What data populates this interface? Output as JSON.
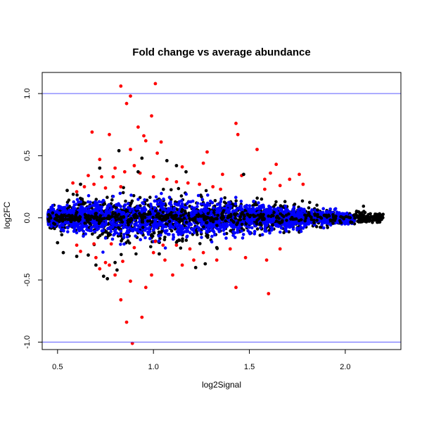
{
  "chart_data": {
    "type": "scatter",
    "title": "Fold change vs average abundance",
    "xlabel": "log2Signal",
    "ylabel": "log2FC",
    "xlim": [
      0.42,
      2.29
    ],
    "ylim": [
      -1.06,
      1.17
    ],
    "x_ticks": [
      0.5,
      1.0,
      1.5,
      2.0
    ],
    "x_tick_labels": [
      "0.5",
      "1.0",
      "1.5",
      "2.0"
    ],
    "y_ticks": [
      -1.0,
      -0.5,
      0.0,
      0.5,
      1.0
    ],
    "y_tick_labels": [
      "-1.0",
      "-0.5",
      "0.0",
      "0.5",
      "1.0"
    ],
    "reference_lines": [
      {
        "axis": "y",
        "value": 1.0,
        "color": "#5a5aff"
      },
      {
        "axis": "y",
        "value": -1.0,
        "color": "#5a5aff"
      }
    ],
    "colors": {
      "black": "#000000",
      "blue": "#0000ff",
      "red": "#ff0000"
    },
    "band_envelope": [
      [
        0.45,
        0.07
      ],
      [
        0.6,
        0.16
      ],
      [
        0.8,
        0.2
      ],
      [
        1.0,
        0.2
      ],
      [
        1.2,
        0.19
      ],
      [
        1.5,
        0.14
      ],
      [
        1.8,
        0.1
      ],
      [
        2.0,
        0.06
      ],
      [
        2.2,
        0.03
      ]
    ],
    "series": [
      {
        "color": "red",
        "points": [
          [
            0.83,
            1.06
          ],
          [
            0.88,
            0.98
          ],
          [
            1.01,
            1.08
          ],
          [
            0.86,
            0.92
          ],
          [
            0.99,
            0.82
          ],
          [
            0.92,
            0.73
          ],
          [
            0.68,
            0.69
          ],
          [
            0.77,
            0.67
          ],
          [
            0.95,
            0.66
          ],
          [
            0.96,
            0.62
          ],
          [
            1.04,
            0.61
          ],
          [
            0.88,
            0.55
          ],
          [
            1.02,
            0.52
          ],
          [
            1.43,
            0.76
          ],
          [
            1.44,
            0.67
          ],
          [
            1.54,
            0.55
          ],
          [
            1.28,
            0.53
          ],
          [
            1.26,
            0.44
          ],
          [
            1.36,
            0.35
          ],
          [
            1.64,
            0.43
          ],
          [
            1.61,
            0.36
          ],
          [
            1.76,
            0.35
          ],
          [
            1.71,
            0.31
          ],
          [
            1.58,
            0.31
          ],
          [
            1.46,
            0.34
          ],
          [
            1.35,
            0.23
          ],
          [
            1.31,
            0.25
          ],
          [
            1.24,
            0.27
          ],
          [
            1.18,
            0.28
          ],
          [
            1.12,
            0.29
          ],
          [
            1.07,
            0.31
          ],
          [
            1.0,
            0.33
          ],
          [
            0.93,
            0.36
          ],
          [
            0.85,
            0.37
          ],
          [
            0.79,
            0.33
          ],
          [
            0.73,
            0.33
          ],
          [
            0.66,
            0.34
          ],
          [
            0.64,
            0.25
          ],
          [
            0.6,
            0.21
          ],
          [
            0.72,
            0.47
          ],
          [
            0.8,
            0.4
          ],
          [
            0.9,
            0.42
          ],
          [
            0.69,
            0.27
          ],
          [
            0.58,
            0.28
          ],
          [
            1.15,
            0.41
          ],
          [
            0.83,
            0.25
          ],
          [
            0.75,
            0.24
          ],
          [
            1.58,
            0.23
          ],
          [
            1.66,
            0.26
          ],
          [
            1.78,
            0.27
          ],
          [
            0.6,
            -0.22
          ],
          [
            0.62,
            -0.27
          ],
          [
            0.7,
            -0.32
          ],
          [
            0.75,
            -0.36
          ],
          [
            0.8,
            -0.46
          ],
          [
            0.72,
            -0.41
          ],
          [
            0.83,
            -0.66
          ],
          [
            0.86,
            -0.84
          ],
          [
            0.89,
            -1.01
          ],
          [
            0.94,
            -0.8
          ],
          [
            0.96,
            -0.56
          ],
          [
            0.99,
            -0.46
          ],
          [
            1.06,
            -0.34
          ],
          [
            1.1,
            -0.46
          ],
          [
            1.15,
            -0.38
          ],
          [
            1.21,
            -0.34
          ],
          [
            1.33,
            -0.34
          ],
          [
            1.43,
            -0.56
          ],
          [
            1.48,
            -0.32
          ],
          [
            1.6,
            -0.61
          ],
          [
            1.59,
            -0.34
          ],
          [
            1.66,
            -0.25
          ],
          [
            0.78,
            -0.21
          ],
          [
            0.9,
            -0.24
          ],
          [
            1.0,
            -0.28
          ],
          [
            1.26,
            -0.28
          ],
          [
            1.4,
            -0.25
          ],
          [
            0.88,
            -0.51
          ],
          [
            0.77,
            -0.38
          ],
          [
            1.12,
            -0.22
          ],
          [
            0.84,
            -0.35
          ],
          [
            1.01,
            -0.19
          ],
          [
            1.05,
            -0.22
          ],
          [
            1.19,
            -0.25
          ],
          [
            0.69,
            -0.21
          ]
        ]
      },
      {
        "color": "black",
        "points": [
          [
            0.82,
            0.54
          ],
          [
            0.94,
            0.48
          ],
          [
            1.07,
            0.46
          ],
          [
            1.12,
            0.42
          ],
          [
            0.72,
            0.4
          ],
          [
            0.92,
            0.37
          ],
          [
            1.17,
            0.37
          ],
          [
            1.47,
            0.35
          ],
          [
            0.62,
            0.27
          ],
          [
            0.55,
            0.22
          ],
          [
            0.66,
            -0.3
          ],
          [
            0.6,
            -0.31
          ],
          [
            0.7,
            -0.38
          ],
          [
            0.74,
            -0.47
          ],
          [
            0.76,
            -0.49
          ],
          [
            0.81,
            -0.42
          ],
          [
            0.53,
            -0.28
          ],
          [
            0.8,
            -0.36
          ],
          [
            1.22,
            -0.4
          ],
          [
            1.27,
            -0.37
          ],
          [
            1.03,
            -0.29
          ],
          [
            1.33,
            -0.24
          ],
          [
            0.5,
            -0.2
          ]
        ]
      }
    ]
  }
}
